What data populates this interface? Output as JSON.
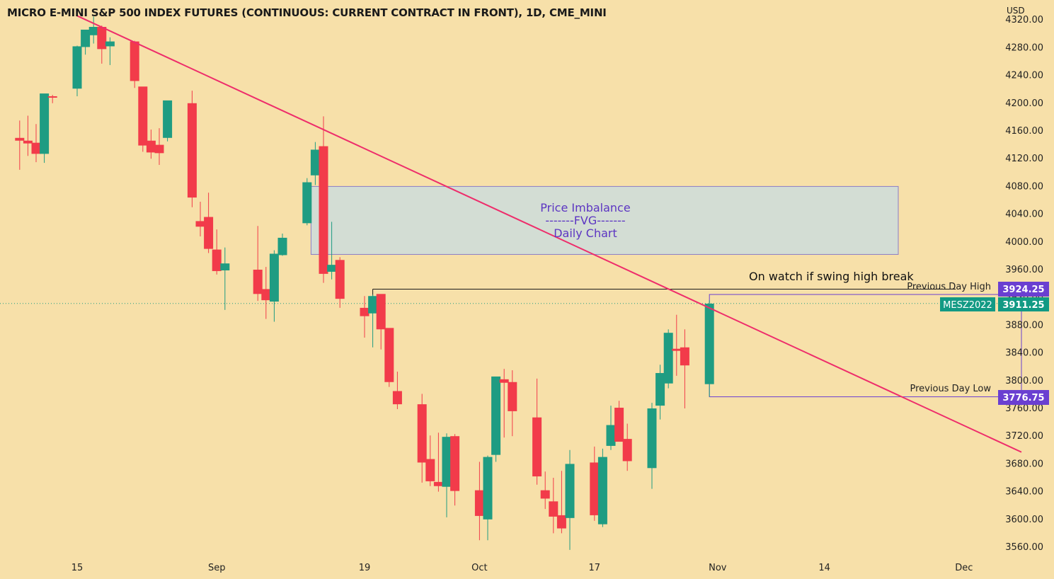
{
  "title": "MICRO E-MINI S&P 500 INDEX FUTURES (CONTINUOUS: CURRENT CONTRACT IN FRONT), 1D, CME_MINI",
  "currency": "USD",
  "colors": {
    "background": "#f7e0a9",
    "up": "#1f9c82",
    "down": "#f23b4a",
    "trendline": "#ee2d6b",
    "fvg_fill": "#d3ddd4",
    "fvg_border": "#8b7cc6",
    "annotation_text": "#5c35c2",
    "label_purple": "#6a3fd1",
    "label_green": "#129a84"
  },
  "chart_data": {
    "type": "candlestick",
    "y_axis": {
      "ylim": [
        3542,
        4330
      ],
      "ticks": [
        "3560.00",
        "3600.00",
        "3640.00",
        "3680.00",
        "3720.00",
        "3760.00",
        "3800.00",
        "3840.00",
        "3880.00",
        "3920.00",
        "3960.00",
        "4000.00",
        "4040.00",
        "4080.00",
        "4120.00",
        "4160.00",
        "4200.00",
        "4240.00",
        "4280.00",
        "4320.00"
      ]
    },
    "x_axis": {
      "ticks": [
        "15",
        "Sep",
        "19",
        "Oct",
        "17",
        "Nov",
        "14",
        "Dec"
      ]
    },
    "candles": [
      {
        "date": "Aug 08",
        "o": 4150,
        "h": 4175,
        "l": 4104,
        "c": 4146
      },
      {
        "date": "Aug 09",
        "o": 4146,
        "h": 4182,
        "l": 4124,
        "c": 4142
      },
      {
        "date": "Aug 10",
        "o": 4143,
        "h": 4170,
        "l": 4115,
        "c": 4127
      },
      {
        "date": "Aug 11",
        "o": 4127,
        "h": 4209,
        "l": 4114,
        "c": 4214
      },
      {
        "date": "Aug 12",
        "o": 4210,
        "h": 4212,
        "l": 4200,
        "c": 4208
      },
      {
        "date": "Aug 15",
        "o": 4221,
        "h": 4283,
        "l": 4210,
        "c": 4282
      },
      {
        "date": "Aug 16",
        "o": 4281,
        "h": 4304,
        "l": 4270,
        "c": 4306
      },
      {
        "date": "Aug 17",
        "o": 4298,
        "h": 4325,
        "l": 4286,
        "c": 4310
      },
      {
        "date": "Aug 18",
        "o": 4310,
        "h": 4312,
        "l": 4257,
        "c": 4278
      },
      {
        "date": "Aug 19",
        "o": 4282,
        "h": 4295,
        "l": 4255,
        "c": 4289
      },
      {
        "date": "Aug 22",
        "o": 4289,
        "h": 4290,
        "l": 4222,
        "c": 4232
      },
      {
        "date": "Aug 23",
        "o": 4224,
        "h": 4222,
        "l": 4130,
        "c": 4139
      },
      {
        "date": "Aug 24",
        "o": 4146,
        "h": 4162,
        "l": 4120,
        "c": 4129
      },
      {
        "date": "Aug 25",
        "o": 4140,
        "h": 4164,
        "l": 4111,
        "c": 4128
      },
      {
        "date": "Aug 26",
        "o": 4150,
        "h": 4203,
        "l": 4145,
        "c": 4204
      },
      {
        "date": "Aug 29",
        "o": 4200,
        "h": 4218,
        "l": 4050,
        "c": 4064
      },
      {
        "date": "Aug 30",
        "o": 4030,
        "h": 4058,
        "l": 4008,
        "c": 4022
      },
      {
        "date": "Aug 31",
        "o": 4036,
        "h": 4071,
        "l": 3984,
        "c": 3990
      },
      {
        "date": "Sep 01",
        "o": 3989,
        "h": 4018,
        "l": 3953,
        "c": 3958
      },
      {
        "date": "Sep 02",
        "o": 3959,
        "h": 3992,
        "l": 3902,
        "c": 3969
      },
      {
        "date": "Sep 06",
        "o": 3960,
        "h": 4023,
        "l": 3915,
        "c": 3925
      },
      {
        "date": "Sep 07",
        "o": 3932,
        "h": 3964,
        "l": 3889,
        "c": 3916
      },
      {
        "date": "Sep 08",
        "o": 3914,
        "h": 3988,
        "l": 3885,
        "c": 3983
      },
      {
        "date": "Sep 09",
        "o": 3981,
        "h": 4012,
        "l": 3980,
        "c": 4006
      },
      {
        "date": "Sep 12",
        "o": 4027,
        "h": 4092,
        "l": 4024,
        "c": 4086
      },
      {
        "date": "Sep 13",
        "o": 4096,
        "h": 4144,
        "l": 4082,
        "c": 4133
      },
      {
        "date": "Sep 14",
        "o": 4138,
        "h": 4181,
        "l": 3941,
        "c": 3954
      },
      {
        "date": "Sep 15",
        "o": 3957,
        "h": 4029,
        "l": 3946,
        "c": 3967
      },
      {
        "date": "Sep 16",
        "o": 3974,
        "h": 3978,
        "l": 3905,
        "c": 3918
      },
      {
        "date": "Sep 19",
        "o": 3905,
        "h": 3922,
        "l": 3862,
        "c": 3893
      },
      {
        "date": "Sep 20",
        "o": 3897,
        "h": 3924,
        "l": 3848,
        "c": 3922
      },
      {
        "date": "Sep 21",
        "o": 3925,
        "h": 3921,
        "l": 3845,
        "c": 3874
      },
      {
        "date": "Sep 22",
        "o": 3876,
        "h": 3873,
        "l": 3791,
        "c": 3798
      },
      {
        "date": "Sep 23",
        "o": 3785,
        "h": 3813,
        "l": 3759,
        "c": 3766
      },
      {
        "date": "Sep 26",
        "o": 3766,
        "h": 3781,
        "l": 3653,
        "c": 3682
      },
      {
        "date": "Sep 27",
        "o": 3687,
        "h": 3721,
        "l": 3648,
        "c": 3655
      },
      {
        "date": "Sep 28",
        "o": 3654,
        "h": 3725,
        "l": 3640,
        "c": 3648
      },
      {
        "date": "Sep 29",
        "o": 3647,
        "h": 3724,
        "l": 3603,
        "c": 3719
      },
      {
        "date": "Sep 30",
        "o": 3720,
        "h": 3723,
        "l": 3620,
        "c": 3641
      },
      {
        "date": "Oct 03",
        "o": 3642,
        "h": 3683,
        "l": 3570,
        "c": 3605
      },
      {
        "date": "Oct 04",
        "o": 3600,
        "h": 3692,
        "l": 3570,
        "c": 3690
      },
      {
        "date": "Oct 05",
        "o": 3693,
        "h": 3805,
        "l": 3683,
        "c": 3806
      },
      {
        "date": "Oct 06",
        "o": 3802,
        "h": 3817,
        "l": 3718,
        "c": 3797
      },
      {
        "date": "Oct 07",
        "o": 3798,
        "h": 3815,
        "l": 3720,
        "c": 3756
      },
      {
        "date": "Oct 10",
        "o": 3747,
        "h": 3803,
        "l": 3650,
        "c": 3662
      },
      {
        "date": "Oct 11",
        "o": 3642,
        "h": 3669,
        "l": 3615,
        "c": 3630
      },
      {
        "date": "Oct 12",
        "o": 3626,
        "h": 3660,
        "l": 3580,
        "c": 3604
      },
      {
        "date": "Oct 13",
        "o": 3606,
        "h": 3670,
        "l": 3580,
        "c": 3587
      },
      {
        "date": "Oct 14",
        "o": 3602,
        "h": 3700,
        "l": 3556,
        "c": 3680
      },
      {
        "date": "Oct 17",
        "o": 3682,
        "h": 3705,
        "l": 3598,
        "c": 3606
      },
      {
        "date": "Oct 18",
        "o": 3593,
        "h": 3702,
        "l": 3589,
        "c": 3690
      },
      {
        "date": "Oct 19",
        "o": 3706,
        "h": 3764,
        "l": 3700,
        "c": 3736
      },
      {
        "date": "Oct 20",
        "o": 3761,
        "h": 3771,
        "l": 3715,
        "c": 3712
      },
      {
        "date": "Oct 21",
        "o": 3716,
        "h": 3738,
        "l": 3670,
        "c": 3684
      },
      {
        "date": "Oct 24",
        "o": 3674,
        "h": 3768,
        "l": 3644,
        "c": 3760
      },
      {
        "date": "Oct 25",
        "o": 3764,
        "h": 3823,
        "l": 3744,
        "c": 3811
      },
      {
        "date": "Oct 26",
        "o": 3796,
        "h": 3874,
        "l": 3789,
        "c": 3869
      },
      {
        "date": "Oct 27",
        "o": 3846,
        "h": 3895,
        "l": 3807,
        "c": 3843
      },
      {
        "date": "Oct 28",
        "o": 3848,
        "h": 3874,
        "l": 3760,
        "c": 3822
      },
      {
        "date": "Oct 31",
        "o": 3795,
        "h": 3916,
        "l": 3777,
        "c": 3911
      }
    ],
    "trendline": {
      "start": {
        "date": "Aug 15",
        "value": 4326
      },
      "end": {
        "date": "Dec 08",
        "value": 3697
      }
    },
    "swing_high_line": {
      "from": "Sep 20",
      "to": "Nov 30",
      "value": 3932
    },
    "fvg_zone": {
      "from": "Sep 13",
      "to": "Nov 23",
      "high": 4080,
      "low": 3982
    },
    "prev_day_box": {
      "from": "Oct 31",
      "to": "Dec 08",
      "high": 3924.25,
      "low": 3776.75
    },
    "last_price_line": {
      "value": 3911.25
    }
  },
  "annotations": {
    "fvg_line1": "Price Imbalance",
    "fvg_line2": "-------FVG-------",
    "fvg_line3": "Daily Chart",
    "swing_note": "On watch if swing high break",
    "prev_high_label": "Previous Day High",
    "prev_low_label": "Previous Day Low"
  },
  "price_labels": {
    "prev_high": "3924.25",
    "symbol": "MESZ2022",
    "last": "3911.25",
    "prev_low": "3776.75"
  }
}
